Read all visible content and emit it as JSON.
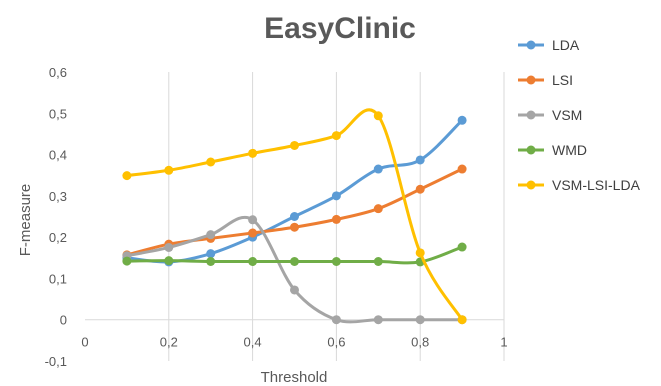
{
  "chart_data": {
    "type": "line",
    "title": "EasyClinic",
    "xlabel": "Threshold",
    "ylabel": "F-measure",
    "xlim": [
      0,
      1
    ],
    "ylim": [
      -0.1,
      0.6
    ],
    "x_ticks": [
      "0",
      "0,2",
      "0,4",
      "0,6",
      "0,8",
      "1"
    ],
    "y_ticks": [
      "-0,1",
      "0",
      "0,1",
      "0,2",
      "0,3",
      "0,4",
      "0,5",
      "0,6"
    ],
    "grid": "vertical",
    "legend_position": "right",
    "x": [
      0.1,
      0.2,
      0.3,
      0.4,
      0.5,
      0.6,
      0.7,
      0.8,
      0.9
    ],
    "series": [
      {
        "name": "LDA",
        "color": "#5b9bd5",
        "values": [
          0.15,
          0.14,
          0.16,
          0.2,
          0.25,
          0.3,
          0.365,
          0.387,
          0.483
        ]
      },
      {
        "name": "LSI",
        "color": "#ed7d31",
        "values": [
          0.157,
          0.183,
          0.197,
          0.21,
          0.224,
          0.243,
          0.269,
          0.316,
          0.365
        ]
      },
      {
        "name": "VSM",
        "color": "#a5a5a5",
        "values": [
          0.155,
          0.175,
          0.206,
          0.242,
          0.072,
          0.0,
          0.0,
          0.0,
          0.0
        ]
      },
      {
        "name": "WMD",
        "color": "#70ad47",
        "values": [
          0.142,
          0.143,
          0.141,
          0.141,
          0.141,
          0.141,
          0.141,
          0.14,
          0.176
        ]
      },
      {
        "name": "VSM-LSI-LDA",
        "color": "#ffc000",
        "values": [
          0.349,
          0.362,
          0.382,
          0.403,
          0.422,
          0.446,
          0.494,
          0.162,
          0.0
        ]
      }
    ]
  }
}
